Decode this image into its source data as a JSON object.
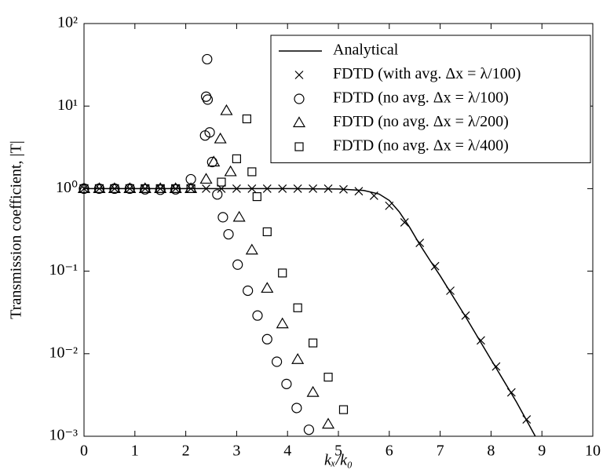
{
  "chart_data": {
    "type": "scatter",
    "xlabel": "kₓ/k₀",
    "ylabel": "Transmission coefficient, |T|",
    "xlim": [
      0,
      10
    ],
    "ylim": [
      0.001,
      100
    ],
    "ylog": true,
    "grid": false,
    "legend": "upper right",
    "xticks": [
      0,
      1,
      2,
      3,
      4,
      5,
      6,
      7,
      8,
      9,
      10
    ],
    "yticks": [
      {
        "value": 0.001,
        "label": "10⁻³"
      },
      {
        "value": 0.01,
        "label": "10⁻²"
      },
      {
        "value": 0.1,
        "label": "10⁻¹"
      },
      {
        "value": 1,
        "label": "10⁰"
      },
      {
        "value": 10,
        "label": "10¹"
      },
      {
        "value": 100,
        "label": "10²"
      }
    ],
    "series": [
      {
        "name": "Analytical",
        "kind": "line",
        "color": "#000000",
        "x": [
          0,
          1,
          2,
          3,
          4,
          5,
          5.5,
          5.8,
          6,
          6.2,
          6.4,
          6.6,
          6.8,
          7,
          7.5,
          8,
          8.5,
          8.87
        ],
        "values": [
          1,
          1,
          1,
          1,
          1,
          0.99,
          0.95,
          0.86,
          0.72,
          0.52,
          0.34,
          0.21,
          0.135,
          0.088,
          0.028,
          0.0085,
          0.0026,
          0.001
        ]
      },
      {
        "name": "FDTD (with avg. Δx = λ/100)",
        "kind": "scatter",
        "marker": "x",
        "color": "#000000",
        "x": [
          0,
          0.3,
          0.6,
          0.9,
          1.2,
          1.5,
          1.8,
          2.1,
          2.4,
          2.7,
          3,
          3.3,
          3.6,
          3.9,
          4.2,
          4.5,
          4.8,
          5.1,
          5.4,
          5.7,
          6,
          6.3,
          6.6,
          6.9,
          7.2,
          7.5,
          7.8,
          8.1,
          8.4,
          8.7
        ],
        "values": [
          1,
          1,
          1,
          1,
          1,
          1,
          1,
          1,
          1,
          1,
          1,
          1,
          1,
          1,
          1,
          1,
          1,
          0.98,
          0.93,
          0.82,
          0.62,
          0.39,
          0.22,
          0.115,
          0.058,
          0.029,
          0.0145,
          0.007,
          0.0034,
          0.0016
        ]
      },
      {
        "name": "FDTD (no avg. Δx = λ/100)",
        "kind": "scatter",
        "marker": "o",
        "color": "#000000",
        "x": [
          0,
          0.3,
          0.6,
          0.9,
          1.2,
          1.5,
          1.8,
          2.1,
          2.38,
          2.4,
          2.42,
          2.43,
          2.47,
          2.52,
          2.62,
          2.73,
          2.84,
          3.02,
          3.22,
          3.41,
          3.6,
          3.79,
          3.98,
          4.18,
          4.42
        ],
        "values": [
          1,
          1,
          1,
          1,
          0.98,
          0.97,
          0.98,
          1.3,
          4.4,
          13,
          37,
          12,
          4.8,
          2.1,
          0.85,
          0.45,
          0.28,
          0.12,
          0.058,
          0.029,
          0.015,
          0.008,
          0.0043,
          0.0022,
          0.0012
        ]
      },
      {
        "name": "FDTD (no avg. Δx = λ/200)",
        "kind": "scatter",
        "marker": "^",
        "color": "#000000",
        "x": [
          0,
          0.3,
          0.6,
          0.9,
          1.2,
          1.5,
          1.8,
          2.1,
          2.4,
          2.55,
          2.68,
          2.8,
          2.88,
          3.05,
          3.3,
          3.6,
          3.9,
          4.2,
          4.5,
          4.8
        ],
        "values": [
          1,
          1,
          1,
          1,
          1,
          1,
          1,
          1,
          1.3,
          2.1,
          4,
          8.8,
          1.6,
          0.45,
          0.18,
          0.062,
          0.023,
          0.0085,
          0.0034,
          0.0014
        ]
      },
      {
        "name": "FDTD (no avg. Δx = λ/400)",
        "kind": "scatter",
        "marker": "s",
        "color": "#000000",
        "x": [
          0,
          0.3,
          0.6,
          0.9,
          1.2,
          1.5,
          1.8,
          2.1,
          2.7,
          3,
          3.2,
          3.3,
          3.4,
          3.6,
          3.9,
          4.2,
          4.5,
          4.8,
          5.1
        ],
        "values": [
          1,
          1,
          1,
          1,
          1,
          1,
          1,
          1,
          1.2,
          2.3,
          7,
          1.6,
          0.8,
          0.3,
          0.095,
          0.036,
          0.0135,
          0.0052,
          0.0021
        ]
      }
    ]
  }
}
